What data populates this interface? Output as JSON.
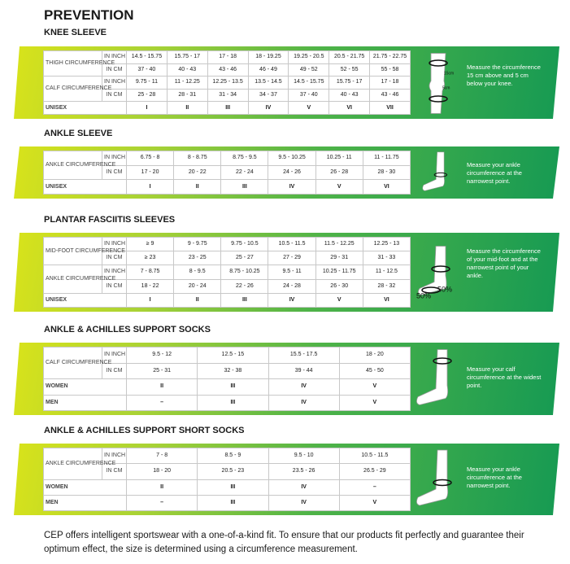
{
  "header": {
    "title": "PREVENTION"
  },
  "sections": [
    {
      "title": "KNEE SLEEVE",
      "rows": [
        {
          "label": "THIGH CIRCUMFERENCE",
          "unit": "IN INCH",
          "cells": [
            "14.5 - 15.75",
            "15.75 - 17",
            "17 - 18",
            "18 - 19.25",
            "19.25 - 20.5",
            "20.5 - 21.75",
            "21.75 - 22.75"
          ]
        },
        {
          "unit": "IN CM",
          "cells": [
            "37 - 40",
            "40 - 43",
            "43 - 46",
            "46 - 49",
            "49 - 52",
            "52 - 55",
            "55 - 58"
          ]
        },
        {
          "label": "CALF CIRCUMFERENCE",
          "unit": "IN INCH",
          "cells": [
            "9.75 - 11",
            "11 - 12.25",
            "12.25 - 13.5",
            "13.5 - 14.5",
            "14.5 - 15.75",
            "15.75 - 17",
            "17 - 18"
          ]
        },
        {
          "unit": "IN CM",
          "cells": [
            "25 - 28",
            "28 - 31",
            "31 - 34",
            "34 - 37",
            "37 - 40",
            "40 - 43",
            "43 - 46"
          ]
        },
        {
          "label": "UNISEX",
          "cells": [
            "I",
            "II",
            "III",
            "IV",
            "V",
            "VI",
            "VII"
          ]
        }
      ],
      "figure_labels": [
        "15cm",
        "5cm"
      ],
      "note": "Measure the circumference 15 cm above and 5 cm below your knee."
    },
    {
      "title": "ANKLE SLEEVE",
      "rows": [
        {
          "label": "ANKLE CIRCUMFERENCE",
          "unit": "IN INCH",
          "cells": [
            "6.75 - 8",
            "8 - 8.75",
            "8.75 - 9.5",
            "9.5 - 10.25",
            "10.25 - 11",
            "11 - 11.75"
          ]
        },
        {
          "unit": "IN CM",
          "cells": [
            "17 - 20",
            "20 - 22",
            "22 - 24",
            "24 - 26",
            "26 - 28",
            "28 - 30"
          ]
        },
        {
          "label": "UNISEX",
          "cells": [
            "I",
            "II",
            "III",
            "IV",
            "V",
            "VI"
          ]
        }
      ],
      "note": "Measure your ankle circumference at the narrowest point."
    },
    {
      "title": "PLANTAR FASCIITIS SLEEVES",
      "rows": [
        {
          "label": "MID-FOOT CIRCUMFERENCE",
          "unit": "IN INCH",
          "cells": [
            "≥ 9",
            "9 - 9.75",
            "9.75 - 10.5",
            "10.5 - 11.5",
            "11.5 - 12.25",
            "12.25 - 13"
          ]
        },
        {
          "unit": "IN CM",
          "cells": [
            "≥ 23",
            "23 - 25",
            "25 - 27",
            "27 - 29",
            "29 - 31",
            "31 - 33"
          ]
        },
        {
          "label": "ANKLE CIRCUMFERENCE",
          "unit": "IN INCH",
          "cells": [
            "7 - 8.75",
            "8 - 9.5",
            "8.75 - 10.25",
            "9.5 - 11",
            "10.25 - 11.75",
            "11 - 12.5"
          ]
        },
        {
          "unit": "IN CM",
          "cells": [
            "18 - 22",
            "20 - 24",
            "22 - 26",
            "24 - 28",
            "26 - 30",
            "28 - 32"
          ]
        },
        {
          "label": "UNISEX",
          "cells": [
            "I",
            "II",
            "III",
            "IV",
            "V",
            "VI"
          ]
        }
      ],
      "figure_labels": [
        "50%",
        "50%"
      ],
      "note": "Measure the circumference of your mid-foot and at the narrowest point of your ankle."
    },
    {
      "title": "ANKLE & ACHILLES SUPPORT SOCKS",
      "rows": [
        {
          "label": "CALF CIRCUMFERENCE",
          "unit": "IN INCH",
          "cells": [
            "9.5 - 12",
            "12.5 - 15",
            "15.5 - 17.5",
            "18 - 20"
          ]
        },
        {
          "unit": "IN CM",
          "cells": [
            "25 - 31",
            "32 - 38",
            "39 - 44",
            "45 - 50"
          ]
        },
        {
          "label": "WOMEN",
          "cells": [
            "II",
            "III",
            "IV",
            "V"
          ]
        },
        {
          "label": "MEN",
          "cells": [
            "–",
            "III",
            "IV",
            "V"
          ]
        }
      ],
      "note": "Measure your calf circumference at the widest point."
    },
    {
      "title": "ANKLE & ACHILLES SUPPORT SHORT SOCKS",
      "rows": [
        {
          "label": "ANKLE CIRCUMFERENCE",
          "unit": "IN INCH",
          "cells": [
            "7 - 8",
            "8.5 - 9",
            "9.5 - 10",
            "10.5 - 11.5"
          ]
        },
        {
          "unit": "IN CM",
          "cells": [
            "18 - 20",
            "20.5 - 23",
            "23.5 - 26",
            "26.5 - 29"
          ]
        },
        {
          "label": "WOMEN",
          "cells": [
            "II",
            "III",
            "IV",
            "–"
          ]
        },
        {
          "label": "MEN",
          "cells": [
            "–",
            "III",
            "IV",
            "V"
          ]
        }
      ],
      "note": "Measure your ankle circumference at the narrowest point."
    }
  ],
  "footer": "CEP offers intelligent sportswear with a one-of-a-kind fit. To ensure that our products fit perfectly and guarantee their optimum effect, the size is determined using a circumference measurement."
}
